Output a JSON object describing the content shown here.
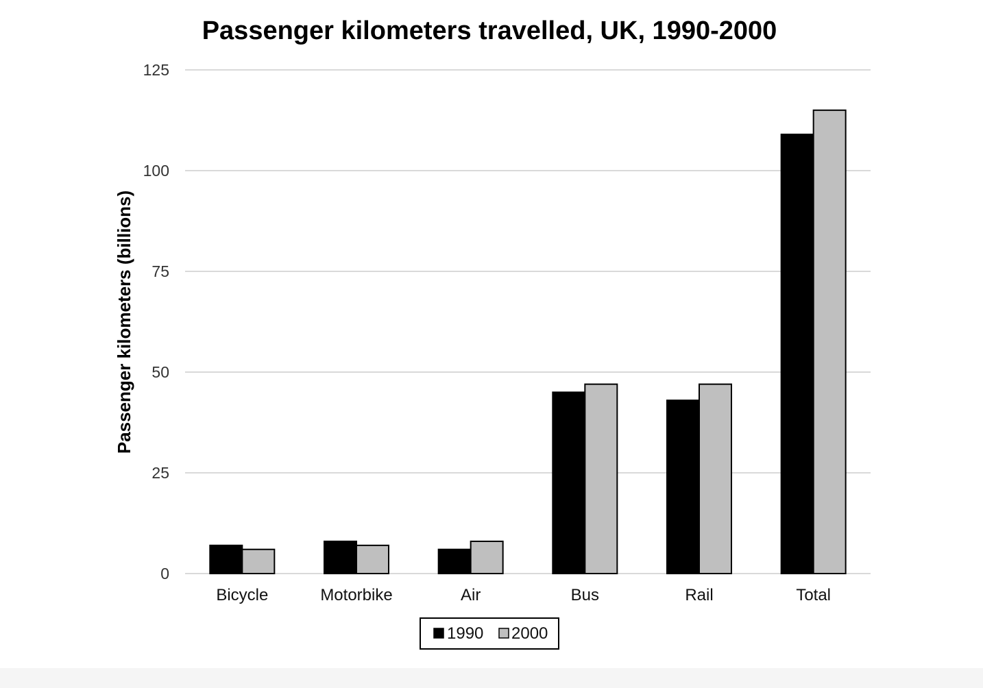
{
  "chart_data": {
    "type": "bar",
    "title": "Passenger kilometers travelled, UK, 1990-2000",
    "xlabel": "",
    "ylabel": "Passenger kilometers (billions)",
    "ylim": [
      0,
      125
    ],
    "yticks": [
      "0",
      "25",
      "50",
      "75",
      "100",
      "125"
    ],
    "ytick_values": [
      0,
      25,
      50,
      75,
      100,
      125
    ],
    "grid": true,
    "legend_position": "bottom",
    "categories": [
      "Bicycle",
      "Motorbike",
      "Air",
      "Bus",
      "Rail",
      "Total"
    ],
    "series": [
      {
        "name": "1990",
        "color": "#000000",
        "values": [
          7,
          8,
          6,
          45,
          43,
          109
        ]
      },
      {
        "name": "2000",
        "color": "#bfbfbf",
        "values": [
          6,
          7,
          8,
          47,
          47,
          115
        ]
      }
    ]
  }
}
